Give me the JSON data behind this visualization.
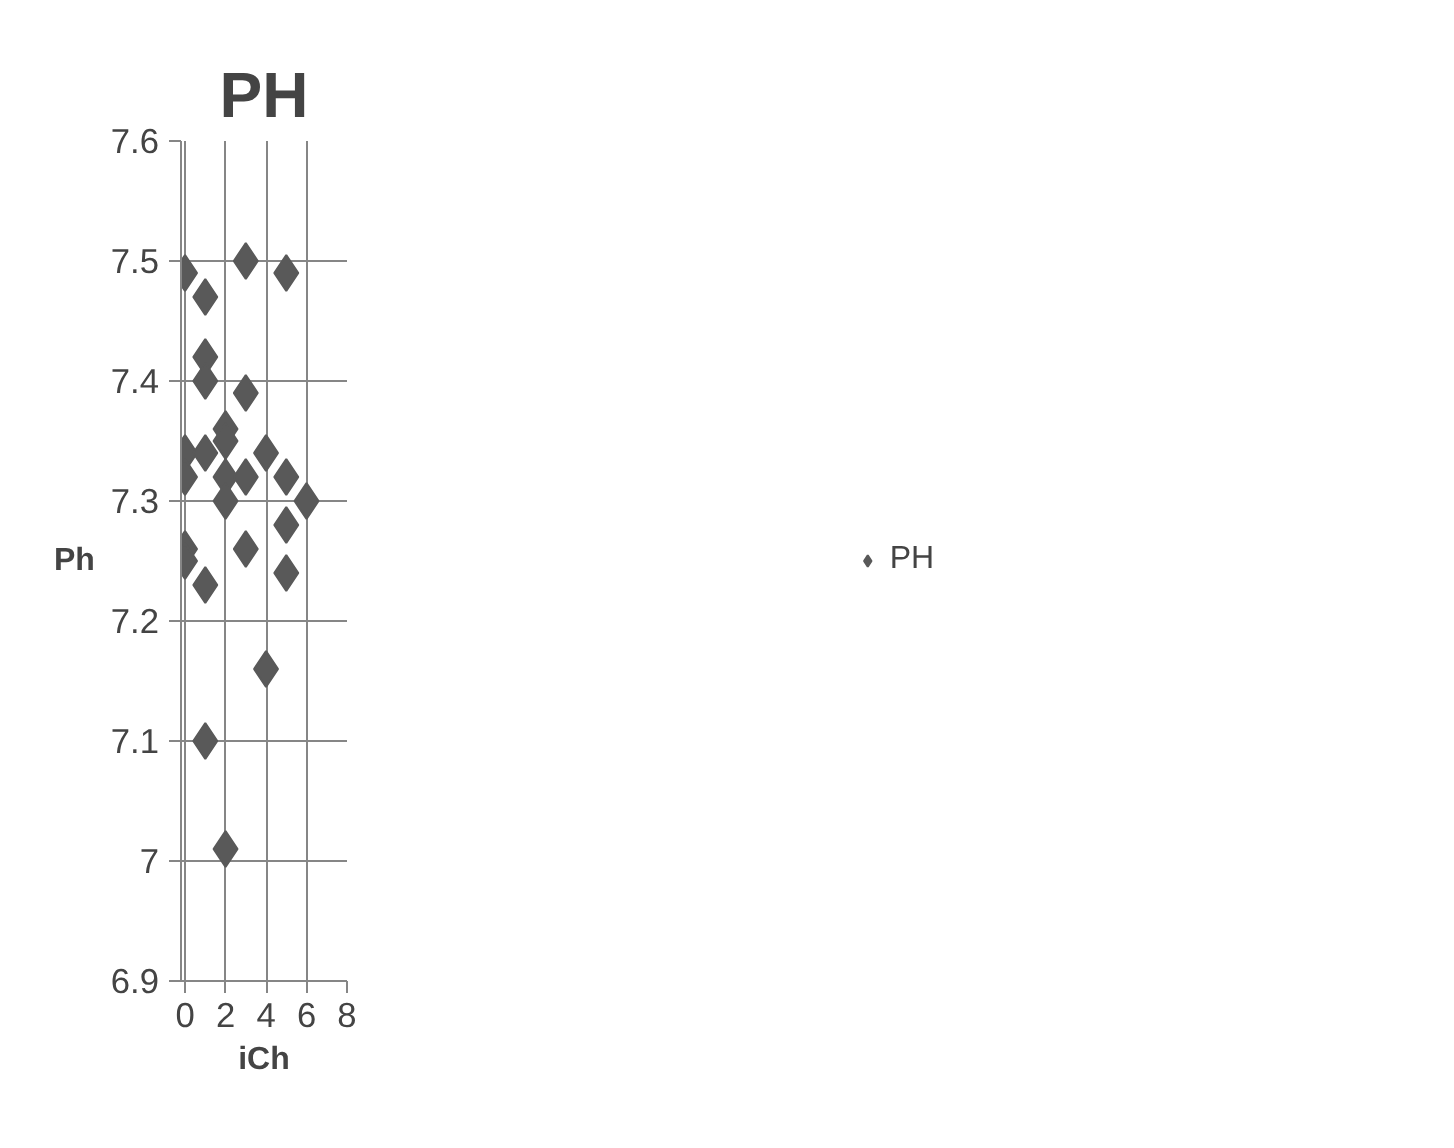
{
  "chart_data": {
    "type": "scatter",
    "title": "PH",
    "xlabel": "iCh",
    "ylabel": "Ph",
    "series": [
      {
        "name": "PH",
        "color": "#595959",
        "x": [
          0,
          0,
          0,
          0,
          0,
          1,
          1,
          1,
          1,
          1,
          1,
          2,
          2,
          2,
          2,
          2,
          3,
          3,
          3,
          3,
          4,
          4,
          5,
          5,
          5,
          5,
          6
        ],
        "values": [
          7.49,
          7.34,
          7.32,
          7.26,
          7.25,
          7.47,
          7.42,
          7.4,
          7.34,
          7.23,
          7.1,
          7.36,
          7.35,
          7.32,
          7.3,
          7.01,
          7.5,
          7.39,
          7.32,
          7.26,
          7.34,
          7.16,
          7.49,
          7.32,
          7.28,
          7.24,
          7.3
        ]
      }
    ],
    "xlim": [
      -0.2,
      8
    ],
    "xticks": [
      0,
      2,
      4,
      6,
      8
    ],
    "ylim": [
      6.9,
      7.6
    ],
    "yticks": [
      6.9,
      7,
      7.1,
      7.2,
      7.3,
      7.4,
      7.5,
      7.6
    ],
    "grid": true,
    "legend": "right",
    "marker": "diamond"
  }
}
